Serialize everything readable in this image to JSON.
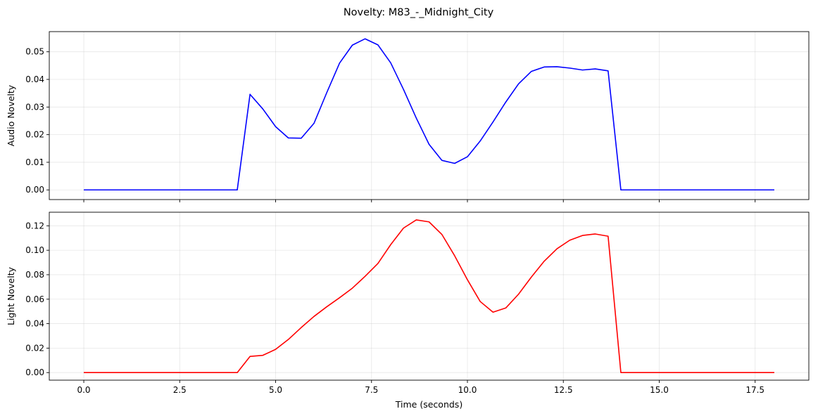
{
  "title": "Novelty: M83_-_Midnight_City",
  "chart_data": [
    {
      "type": "line",
      "ylabel": "Audio Novelty",
      "xlabel": "",
      "xlim": [
        -0.9,
        18.9
      ],
      "ylim": [
        -0.0035,
        0.0573
      ],
      "xticks": [
        0.0,
        2.5,
        5.0,
        7.5,
        10.0,
        12.5,
        15.0,
        17.5
      ],
      "xtick_labels": [
        "",
        "",
        "",
        "",
        "",
        "",
        "",
        ""
      ],
      "yticks": [
        0.0,
        0.01,
        0.02,
        0.03,
        0.04,
        0.05
      ],
      "ytick_labels": [
        "0.00",
        "0.01",
        "0.02",
        "0.03",
        "0.04",
        "0.05"
      ],
      "grid": true,
      "series": [
        {
          "color": "#0000ff",
          "x": [
            0,
            0.333,
            0.667,
            1,
            1.333,
            1.667,
            2,
            2.333,
            2.667,
            3,
            3.333,
            3.667,
            4,
            4.333,
            4.667,
            5,
            5.333,
            5.667,
            6,
            6.333,
            6.667,
            7,
            7.333,
            7.667,
            8,
            8.333,
            8.667,
            9,
            9.333,
            9.667,
            10,
            10.333,
            10.667,
            11,
            11.333,
            11.667,
            12,
            12.333,
            12.667,
            13,
            13.333,
            13.667,
            14,
            14.333,
            14.667,
            15,
            15.333,
            15.667,
            16,
            16.333,
            16.667,
            17,
            17.333,
            17.667,
            18
          ],
          "y": [
            0,
            0,
            0,
            0,
            0,
            0,
            0,
            0,
            0,
            0,
            0,
            0,
            0,
            0.0346,
            0.0293,
            0.0229,
            0.0188,
            0.0187,
            0.0241,
            0.0352,
            0.0459,
            0.0524,
            0.0547,
            0.0525,
            0.046,
            0.0364,
            0.026,
            0.0165,
            0.0107,
            0.0096,
            0.012,
            0.0177,
            0.0246,
            0.0318,
            0.0384,
            0.0429,
            0.0445,
            0.0446,
            0.0441,
            0.0434,
            0.0438,
            0.0431,
            0,
            0,
            0,
            0,
            0,
            0,
            0,
            0,
            0,
            0,
            0,
            0,
            0
          ]
        }
      ]
    },
    {
      "type": "line",
      "ylabel": "Light Novelty",
      "xlabel": "Time (seconds)",
      "xlim": [
        -0.9,
        18.9
      ],
      "ylim": [
        -0.0062,
        0.1311
      ],
      "xticks": [
        0.0,
        2.5,
        5.0,
        7.5,
        10.0,
        12.5,
        15.0,
        17.5
      ],
      "xtick_labels": [
        "0.0",
        "2.5",
        "5.0",
        "7.5",
        "10.0",
        "12.5",
        "15.0",
        "17.5"
      ],
      "yticks": [
        0.0,
        0.02,
        0.04,
        0.06,
        0.08,
        0.1,
        0.12
      ],
      "ytick_labels": [
        "0.00",
        "0.02",
        "0.04",
        "0.06",
        "0.08",
        "0.10",
        "0.12"
      ],
      "grid": true,
      "series": [
        {
          "color": "#ff0000",
          "x": [
            0,
            0.333,
            0.667,
            1,
            1.333,
            1.667,
            2,
            2.333,
            2.667,
            3,
            3.333,
            3.667,
            4,
            4.333,
            4.667,
            5,
            5.333,
            5.667,
            6,
            6.333,
            6.667,
            7,
            7.333,
            7.667,
            8,
            8.333,
            8.667,
            9,
            9.333,
            9.667,
            10,
            10.333,
            10.667,
            11,
            11.333,
            11.667,
            12,
            12.333,
            12.667,
            13,
            13.333,
            13.667,
            14,
            14.333,
            14.667,
            15,
            15.333,
            15.667,
            16,
            16.333,
            16.667,
            17,
            17.333,
            17.667,
            18
          ],
          "y": [
            0,
            0,
            0,
            0,
            0,
            0,
            0,
            0,
            0,
            0,
            0,
            0,
            0,
            0.0132,
            0.0141,
            0.019,
            0.0271,
            0.0368,
            0.0459,
            0.0538,
            0.0612,
            0.069,
            0.0787,
            0.0892,
            0.1046,
            0.1181,
            0.1248,
            0.1232,
            0.113,
            0.0955,
            0.0759,
            0.0581,
            0.0494,
            0.0528,
            0.0641,
            0.0781,
            0.091,
            0.1012,
            0.1082,
            0.1121,
            0.1133,
            0.1115,
            0,
            0,
            0,
            0,
            0,
            0,
            0,
            0,
            0,
            0,
            0,
            0,
            0
          ]
        }
      ]
    }
  ]
}
